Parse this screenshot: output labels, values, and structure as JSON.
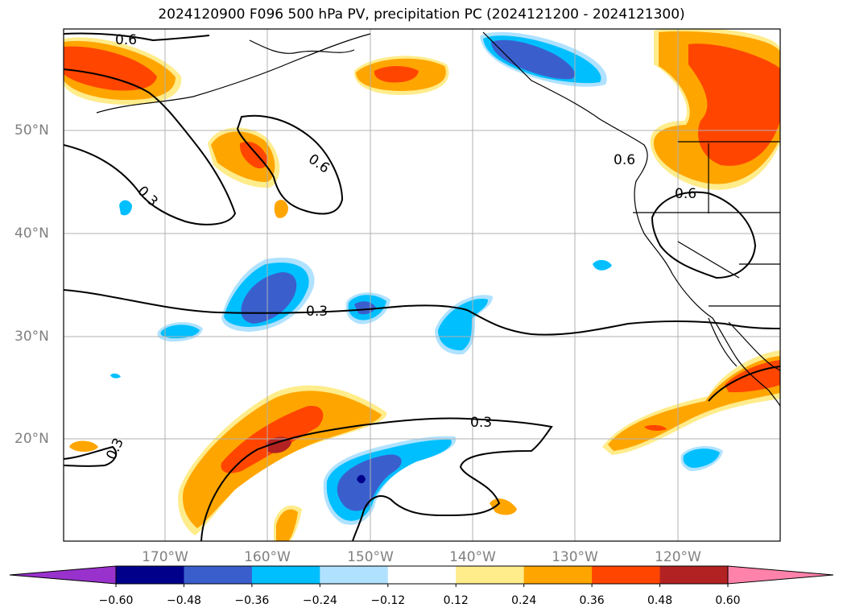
{
  "title": "2024120900 F096 500 hPa PV, precipitation PC (2024121200 - 2024121300)",
  "lat_labels": [
    "50°N",
    "40°N",
    "30°N",
    "20°N"
  ],
  "lon_labels": [
    "170°W",
    "160°W",
    "150°W",
    "140°W",
    "130°W",
    "120°W"
  ],
  "contour_labels": [
    "0.6",
    "0.3",
    "0.6",
    "0.3",
    "0.3",
    "0.6",
    "0.6",
    "0.3"
  ],
  "colorbar": {
    "ticks": [
      "−0.60",
      "−0.48",
      "−0.36",
      "−0.24",
      "−0.12",
      "0.12",
      "0.24",
      "0.36",
      "0.48",
      "0.60"
    ],
    "colors": [
      "#9932cc",
      "#00008b",
      "#3a5fcd",
      "#00bfff",
      "#b0e2ff",
      "#ffffff",
      "#ffec8b",
      "#ffa500",
      "#ff4500",
      "#b22222",
      "#ff82ab"
    ]
  }
}
